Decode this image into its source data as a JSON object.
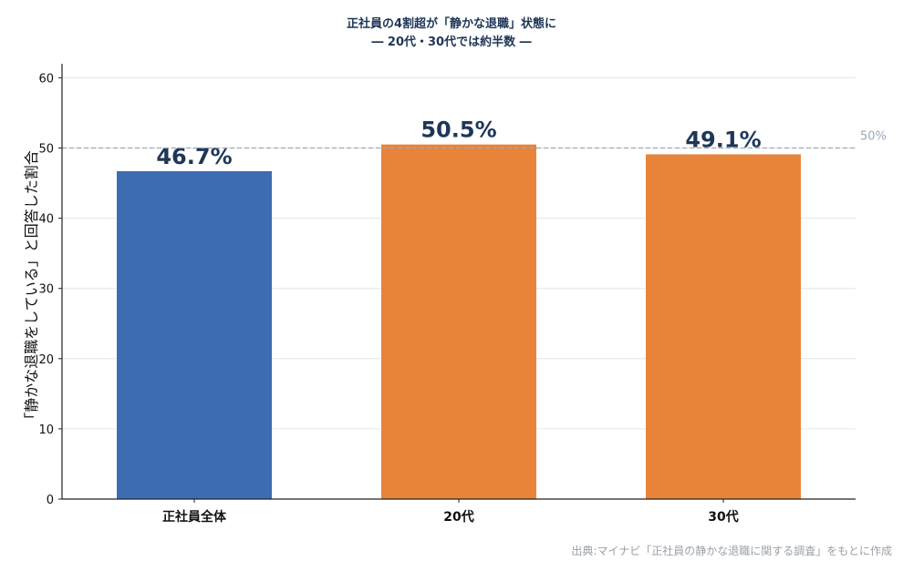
{
  "chart_data": {
    "type": "bar",
    "title": "正社員の4割超が「静かな退職」状態に",
    "subtitle": "― 20代・30代では約半数 ―",
    "categories": [
      "正社員全体",
      "20代",
      "30代"
    ],
    "values": [
      46.7,
      50.5,
      49.1
    ],
    "value_labels": [
      "46.7%",
      "50.5%",
      "49.1%"
    ],
    "colors": [
      "#3d6cb3",
      "#e8843a",
      "#e8843a"
    ],
    "xlabel": "",
    "ylabel": "「静かな退職をしている」と回答した割合",
    "ylim": [
      0,
      62
    ],
    "yticks": [
      0,
      10,
      20,
      30,
      40,
      50,
      60
    ],
    "grid": true,
    "reference_line": {
      "value": 50,
      "label": "50%",
      "color": "#9aa8ba"
    },
    "source": "出典:マイナビ「正社員の静かな退職に関する調査」をもとに作成"
  }
}
